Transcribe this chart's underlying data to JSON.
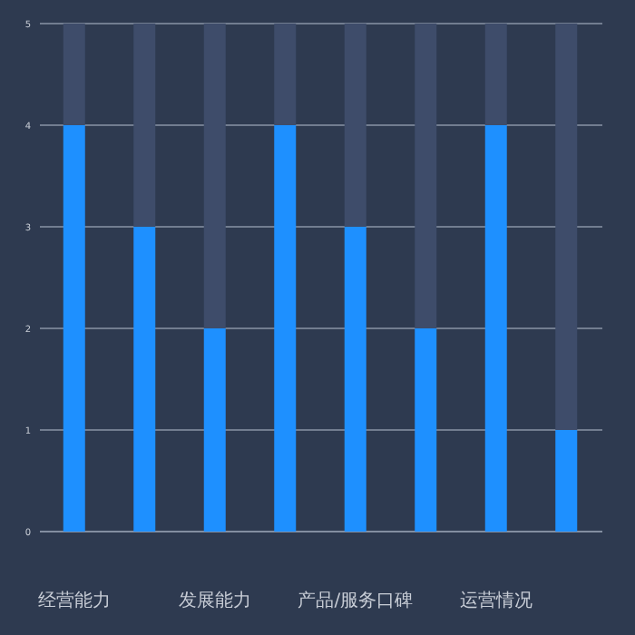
{
  "chart_data": {
    "type": "bar",
    "stacked": true,
    "categories": [
      "经营能力",
      null,
      "发展能力",
      null,
      "产品/服务口碑",
      null,
      "运营情况",
      null
    ],
    "series": [
      {
        "color": "#1e90ff",
        "values": [
          4,
          3,
          2,
          4,
          3,
          2,
          4,
          1
        ]
      },
      {
        "color": "#3e4c6a",
        "values": [
          1,
          2,
          3,
          1,
          2,
          3,
          1,
          4
        ]
      }
    ],
    "ylim": [
      0,
      5
    ],
    "yticks": [
      0,
      1,
      2,
      3,
      4,
      5
    ],
    "grid": "y"
  }
}
